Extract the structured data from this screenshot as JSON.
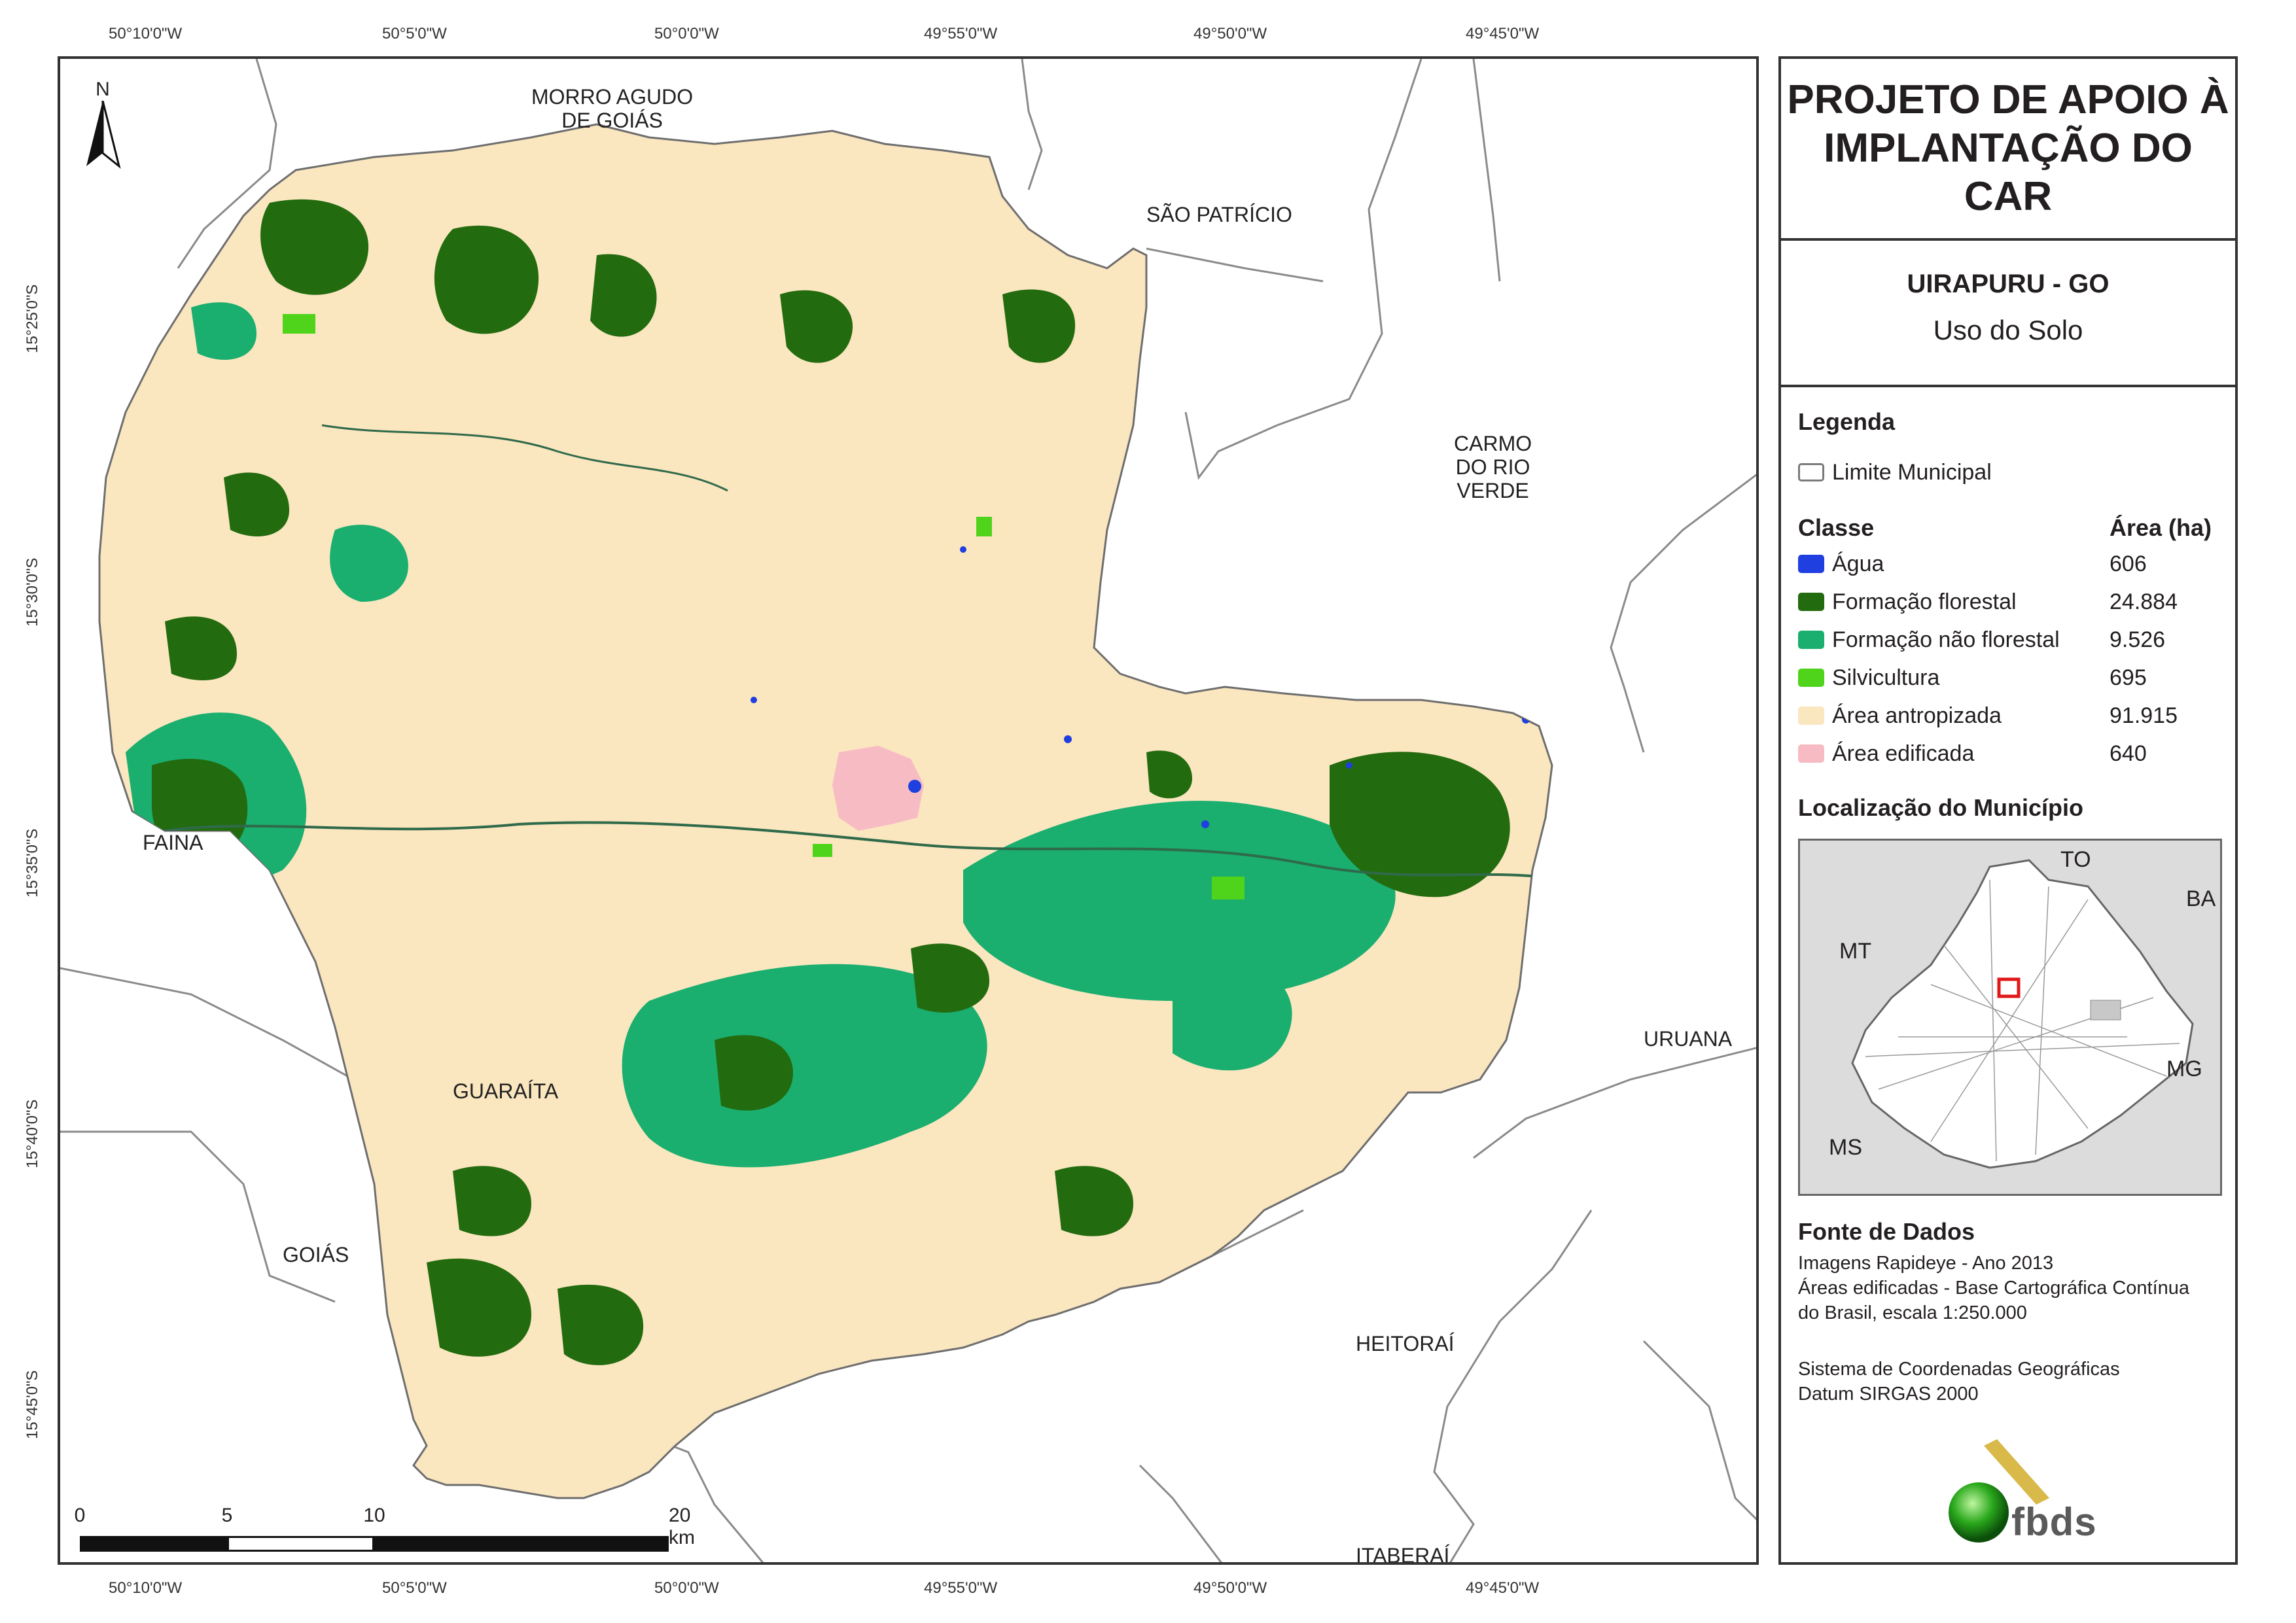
{
  "map": {
    "coords_top": [
      "50°10'0\"W",
      "50°5'0\"W",
      "50°0'0\"W",
      "49°55'0\"W",
      "49°50'0\"W",
      "49°45'0\"W"
    ],
    "coords_bottom": [
      "50°10'0\"W",
      "50°5'0\"W",
      "50°0'0\"W",
      "49°55'0\"W",
      "49°50'0\"W",
      "49°45'0\"W"
    ],
    "coords_left": [
      "15°25'0\"S",
      "15°30'0\"S",
      "15°35'0\"S",
      "15°40'0\"S",
      "15°45'0\"S"
    ],
    "north_label": "N",
    "places": {
      "morro_agudo_1": "MORRO AGUDO",
      "morro_agudo_2": "DE GOIÁS",
      "sao_patricio": "SÃO PATRÍCIO",
      "carmo_1": "CARMO",
      "carmo_2": "DO RIO",
      "carmo_3": "VERDE",
      "faina": "FAINA",
      "guaraita": "GUARAÍTA",
      "goias": "GOIÁS",
      "uruana": "URUANA",
      "heitorai": "HEITORAÍ",
      "itaberai": "ITABERAÍ"
    },
    "scale": {
      "labels": [
        "0",
        "5",
        "10",
        "20 km"
      ]
    },
    "colors": {
      "agua": "#1f3fe0",
      "formacao_florestal": "#236b0f",
      "formacao_nao_florestal": "#1aae6f",
      "silvicultura": "#4fd41b",
      "area_antropizada": "#fae6bf",
      "area_edificada": "#f7bcc3",
      "limite": "#7a7a7a"
    }
  },
  "panel": {
    "title_line1": "PROJETO DE APOIO À",
    "title_line2": "IMPLANTAÇÃO DO CAR",
    "municipality": "UIRAPURU - GO",
    "subtitle": "Uso do Solo",
    "legend_heading": "Legenda",
    "limite_label": "Limite Municipal",
    "class_header": "Classe",
    "area_header": "Área (ha)",
    "classes": [
      {
        "label": "Água",
        "area": "606"
      },
      {
        "label": "Formação florestal",
        "area": "24.884"
      },
      {
        "label": "Formação não florestal",
        "area": "9.526"
      },
      {
        "label": "Silvicultura",
        "area": "695"
      },
      {
        "label": "Área antropizada",
        "area": "91.915"
      },
      {
        "label": "Área edificada",
        "area": "640"
      }
    ],
    "localizacao_heading": "Localização do Município",
    "inset_labels": {
      "to": "TO",
      "ba": "BA",
      "mt": "MT",
      "mg": "MG",
      "ms": "MS"
    },
    "fonte_heading": "Fonte de Dados",
    "fonte_lines": [
      "Imagens Rapideye - Ano 2013",
      "Áreas edificadas - Base Cartográfica Contínua",
      "do Brasil, escala 1:250.000"
    ],
    "sistema_lines": [
      "Sistema de Coordenadas Geográficas",
      "Datum SIRGAS 2000"
    ],
    "logo_text": "fbds"
  }
}
